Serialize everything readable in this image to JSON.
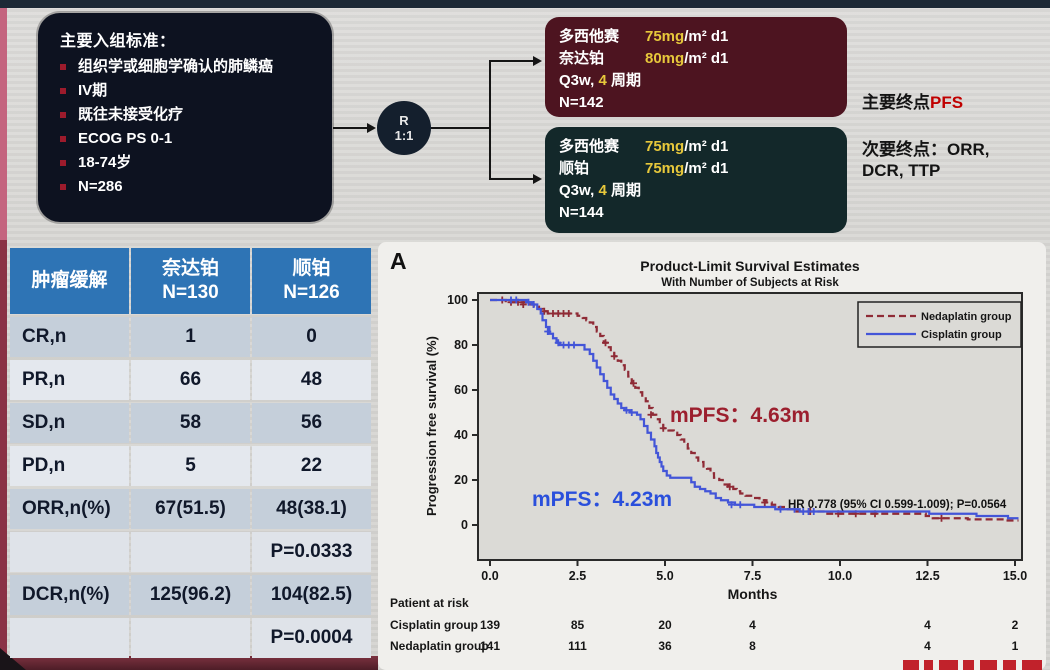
{
  "flow": {
    "criteria": {
      "title": "主要入组标准：",
      "items": [
        "组织学或细胞学确认的肺鳞癌",
        "IV期",
        "既往未接受化疗",
        "ECOG PS 0-1",
        "18-74岁",
        "N=286"
      ]
    },
    "randomization": {
      "letter": "R",
      "ratio": "1:1"
    },
    "arm_nedaplatin": {
      "lines": [
        {
          "drug": "多西他赛",
          "dose": "75mg",
          "suffix": "/m² d1"
        },
        {
          "drug": "奈达铂",
          "dose": "80mg",
          "suffix": "/m² d1"
        }
      ],
      "schedule": {
        "prefix": "Q3w,",
        "cycles": "4",
        "suffix": "周期"
      },
      "n": "N=142"
    },
    "arm_cisplatin": {
      "lines": [
        {
          "drug": "多西他赛",
          "dose": "75mg",
          "suffix": "/m² d1"
        },
        {
          "drug": "顺铂",
          "dose": "75mg",
          "suffix": "/m² d1"
        }
      ],
      "schedule": {
        "prefix": "Q3w,",
        "cycles": "4",
        "suffix": "周期"
      },
      "n": "N=144"
    },
    "endpoints": {
      "primary_label": "主要终点",
      "primary_value": "PFS",
      "secondary_line1": "次要终点：ORR,",
      "secondary_line2": "DCR, TTP"
    }
  },
  "response_table": {
    "headers": [
      {
        "title": "肿瘤缓解",
        "sub": ""
      },
      {
        "title": "奈达铂",
        "sub": "N=130"
      },
      {
        "title": "顺铂",
        "sub": "N=126"
      }
    ],
    "rows": [
      {
        "label": "CR,n",
        "nedaplatin": "1",
        "cisplatin": "0",
        "kind": "dark"
      },
      {
        "label": "PR,n",
        "nedaplatin": "66",
        "cisplatin": "48",
        "kind": "light"
      },
      {
        "label": "SD,n",
        "nedaplatin": "58",
        "cisplatin": "56",
        "kind": "dark"
      },
      {
        "label": "PD,n",
        "nedaplatin": "5",
        "cisplatin": "22",
        "kind": "light"
      },
      {
        "label": "ORR,n(%)",
        "nedaplatin": "67(51.5)",
        "cisplatin": "48(38.1)",
        "kind": "dark"
      },
      {
        "label": "",
        "nedaplatin": "",
        "cisplatin": "P=0.0333",
        "kind": "p"
      },
      {
        "label": "DCR,n(%)",
        "nedaplatin": "125(96.2)",
        "cisplatin": "104(82.5)",
        "kind": "dark"
      },
      {
        "label": "",
        "nedaplatin": "",
        "cisplatin": "P=0.0004",
        "kind": "p"
      }
    ]
  },
  "chart_data": {
    "type": "line",
    "panel_label": "A",
    "title": "Product-Limit Survival Estimates",
    "subtitle": "With Number of Subjects at Risk",
    "xlabel": "Months",
    "ylabel": "Progression free survival (%)",
    "xlim": [
      0,
      15
    ],
    "ylim": [
      0,
      100
    ],
    "xticks": [
      0.0,
      2.5,
      5.0,
      7.5,
      10.0,
      12.5,
      15.0
    ],
    "yticks": [
      0,
      20,
      40,
      60,
      80,
      100
    ],
    "grid": false,
    "legend_position": "top-right",
    "series": [
      {
        "name": "Nedaplatin group",
        "color": "#8f2b36",
        "style": "dashed",
        "median_pfs_months": 4.63,
        "steps": [
          [
            0,
            100
          ],
          [
            0.35,
            100
          ],
          [
            0.45,
            99
          ],
          [
            1.05,
            98
          ],
          [
            1.25,
            97
          ],
          [
            1.4,
            96
          ],
          [
            1.5,
            95
          ],
          [
            1.65,
            94
          ],
          [
            2.3,
            94
          ],
          [
            2.5,
            93
          ],
          [
            2.65,
            92
          ],
          [
            2.75,
            91
          ],
          [
            2.85,
            90
          ],
          [
            2.95,
            88
          ],
          [
            3.05,
            86
          ],
          [
            3.15,
            84
          ],
          [
            3.25,
            81
          ],
          [
            3.35,
            79
          ],
          [
            3.45,
            77
          ],
          [
            3.55,
            75
          ],
          [
            3.65,
            73
          ],
          [
            3.75,
            71
          ],
          [
            3.85,
            69
          ],
          [
            3.95,
            66
          ],
          [
            4.05,
            63
          ],
          [
            4.15,
            61
          ],
          [
            4.25,
            59
          ],
          [
            4.35,
            57
          ],
          [
            4.45,
            55
          ],
          [
            4.55,
            52
          ],
          [
            4.65,
            49
          ],
          [
            4.75,
            47
          ],
          [
            4.85,
            45
          ],
          [
            4.95,
            43
          ],
          [
            5.1,
            42
          ],
          [
            5.25,
            41
          ],
          [
            5.35,
            40
          ],
          [
            5.45,
            38
          ],
          [
            5.55,
            36
          ],
          [
            5.65,
            34
          ],
          [
            5.75,
            32
          ],
          [
            5.85,
            30
          ],
          [
            5.95,
            28
          ],
          [
            6.1,
            26
          ],
          [
            6.2,
            25
          ],
          [
            6.3,
            23
          ],
          [
            6.4,
            21
          ],
          [
            6.55,
            20
          ],
          [
            6.65,
            18
          ],
          [
            6.8,
            17
          ],
          [
            6.95,
            16
          ],
          [
            7.05,
            15
          ],
          [
            7.15,
            14
          ],
          [
            7.3,
            13
          ],
          [
            7.5,
            12
          ],
          [
            7.7,
            11
          ],
          [
            7.9,
            10
          ],
          [
            8.05,
            9
          ],
          [
            8.25,
            8
          ],
          [
            8.45,
            7
          ],
          [
            8.7,
            6
          ],
          [
            9.4,
            6
          ],
          [
            9.6,
            5
          ],
          [
            12.25,
            5
          ],
          [
            12.45,
            4
          ],
          [
            12.65,
            3
          ],
          [
            13.55,
            3
          ],
          [
            13.65,
            2.5
          ],
          [
            14.55,
            2.5
          ],
          [
            14.7,
            2
          ],
          [
            15.1,
            2
          ]
        ],
        "censors": [
          [
            0.35,
            100
          ],
          [
            0.6,
            99
          ],
          [
            0.8,
            99
          ],
          [
            0.95,
            98
          ],
          [
            1.55,
            95
          ],
          [
            1.8,
            94
          ],
          [
            1.95,
            94
          ],
          [
            2.1,
            94
          ],
          [
            2.25,
            94
          ],
          [
            3.3,
            81
          ],
          [
            3.55,
            75
          ],
          [
            4.1,
            63
          ],
          [
            4.6,
            49
          ],
          [
            4.95,
            43
          ],
          [
            6.85,
            17
          ],
          [
            7.85,
            10
          ],
          [
            9.15,
            6
          ],
          [
            9.95,
            5
          ],
          [
            10.45,
            5
          ],
          [
            11.0,
            5
          ],
          [
            12.9,
            3
          ]
        ]
      },
      {
        "name": "Cisplatin group",
        "color": "#4355d8",
        "style": "solid",
        "median_pfs_months": 4.23,
        "steps": [
          [
            0,
            100
          ],
          [
            0.9,
            100
          ],
          [
            1.05,
            99
          ],
          [
            1.2,
            98
          ],
          [
            1.35,
            96
          ],
          [
            1.45,
            94
          ],
          [
            1.5,
            91
          ],
          [
            1.6,
            88
          ],
          [
            1.7,
            85
          ],
          [
            1.8,
            83
          ],
          [
            1.9,
            81
          ],
          [
            2.0,
            80
          ],
          [
            2.5,
            80
          ],
          [
            2.7,
            78
          ],
          [
            2.85,
            76
          ],
          [
            2.95,
            73
          ],
          [
            3.05,
            70
          ],
          [
            3.15,
            67
          ],
          [
            3.25,
            64
          ],
          [
            3.35,
            61
          ],
          [
            3.45,
            58
          ],
          [
            3.55,
            56
          ],
          [
            3.65,
            54
          ],
          [
            3.75,
            52
          ],
          [
            3.85,
            51
          ],
          [
            4.0,
            50
          ],
          [
            4.2,
            49
          ],
          [
            4.3,
            47
          ],
          [
            4.4,
            44
          ],
          [
            4.5,
            41
          ],
          [
            4.6,
            38
          ],
          [
            4.7,
            35
          ],
          [
            4.75,
            32
          ],
          [
            4.8,
            30
          ],
          [
            4.85,
            28
          ],
          [
            4.9,
            26
          ],
          [
            4.95,
            24
          ],
          [
            5.05,
            22
          ],
          [
            5.15,
            21
          ],
          [
            5.65,
            21
          ],
          [
            5.75,
            19
          ],
          [
            5.85,
            17
          ],
          [
            6.0,
            16
          ],
          [
            6.15,
            15
          ],
          [
            6.3,
            14
          ],
          [
            6.45,
            12
          ],
          [
            6.6,
            11
          ],
          [
            6.8,
            10
          ],
          [
            7.0,
            9
          ],
          [
            7.4,
            9
          ],
          [
            7.55,
            8
          ],
          [
            8.0,
            8
          ],
          [
            8.15,
            7
          ],
          [
            8.6,
            7
          ],
          [
            8.85,
            6
          ],
          [
            12.35,
            6
          ],
          [
            12.55,
            5
          ],
          [
            13.75,
            5
          ],
          [
            13.9,
            4
          ],
          [
            14.65,
            4
          ],
          [
            14.8,
            3
          ],
          [
            15.1,
            3
          ]
        ],
        "censors": [
          [
            0.6,
            100
          ],
          [
            0.75,
            100
          ],
          [
            1.1,
            99
          ],
          [
            1.25,
            98
          ],
          [
            1.65,
            86
          ],
          [
            1.95,
            81
          ],
          [
            2.1,
            80
          ],
          [
            2.25,
            80
          ],
          [
            2.4,
            80
          ],
          [
            3.9,
            51
          ],
          [
            4.05,
            50
          ],
          [
            6.9,
            9
          ],
          [
            7.15,
            9
          ],
          [
            8.3,
            7
          ],
          [
            8.7,
            7
          ],
          [
            8.95,
            6
          ],
          [
            9.1,
            6
          ],
          [
            9.25,
            6
          ]
        ]
      }
    ],
    "annotations": [
      {
        "id": "mpfs-nedaplatin",
        "text": "mPFS：4.63m",
        "color": "#9c1f2e"
      },
      {
        "id": "mpfs-cisplatin",
        "text": "mPFS：4.23m",
        "color": "#2a4fdc"
      },
      {
        "id": "hr",
        "text": "HR 0.778 (95% CI 0.599-1.009); P=0.0564",
        "color": "#111111"
      }
    ],
    "risk_table": {
      "label": "Patient at risk",
      "months": [
        0,
        2.5,
        5,
        7.5,
        12.5,
        15
      ],
      "rows": [
        {
          "name": "Cisplatin group",
          "values": [
            "139",
            "85",
            "20",
            "4",
            "4",
            "2"
          ]
        },
        {
          "name": "Nedaplatin group",
          "values": [
            "141",
            "111",
            "36",
            "8",
            "4",
            "1"
          ]
        }
      ]
    }
  }
}
